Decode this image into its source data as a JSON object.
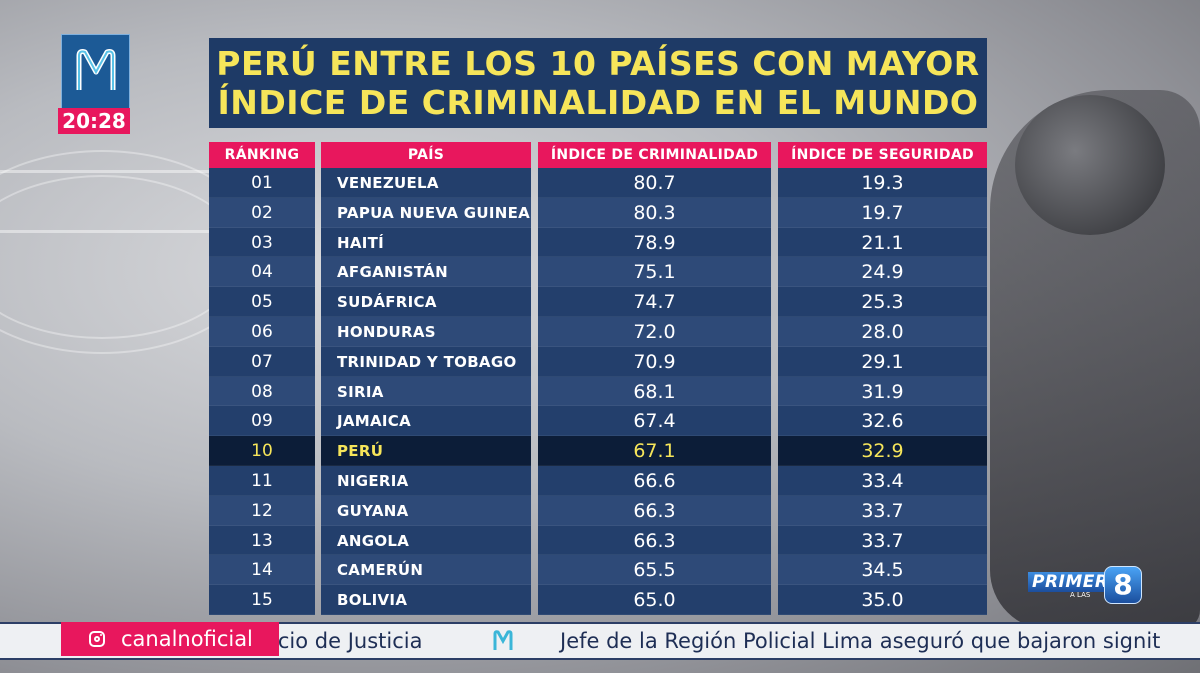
{
  "broadcast": {
    "clock": "20:28",
    "logo_icon": "canal-n-logo-icon"
  },
  "title": {
    "line1": "PERÚ ENTRE LOS 10 PAÍSES CON MAYOR",
    "line2": "ÍNDICE DE CRIMINALIDAD EN EL MUNDO"
  },
  "table": {
    "headers": {
      "rank": "RÁNKING",
      "country": "PAÍS",
      "crime": "ÍNDICE DE CRIMINALIDAD",
      "safety": "ÍNDICE DE SEGURIDAD"
    },
    "rows": [
      {
        "rank": "01",
        "country": "VENEZUELA",
        "crime": "80.7",
        "safety": "19.3"
      },
      {
        "rank": "02",
        "country": "PAPUA NUEVA GUINEA",
        "crime": "80.3",
        "safety": "19.7"
      },
      {
        "rank": "03",
        "country": "HAITÍ",
        "crime": "78.9",
        "safety": "21.1"
      },
      {
        "rank": "04",
        "country": "AFGANISTÁN",
        "crime": "75.1",
        "safety": "24.9"
      },
      {
        "rank": "05",
        "country": "SUDÁFRICA",
        "crime": "74.7",
        "safety": "25.3"
      },
      {
        "rank": "06",
        "country": "HONDURAS",
        "crime": "72.0",
        "safety": "28.0"
      },
      {
        "rank": "07",
        "country": "TRINIDAD Y TOBAGO",
        "crime": "70.9",
        "safety": "29.1"
      },
      {
        "rank": "08",
        "country": "SIRIA",
        "crime": "68.1",
        "safety": "31.9"
      },
      {
        "rank": "09",
        "country": "JAMAICA",
        "crime": "67.4",
        "safety": "32.6"
      },
      {
        "rank": "10",
        "country": "PERÚ",
        "crime": "67.1",
        "safety": "32.9",
        "highlight": true
      },
      {
        "rank": "11",
        "country": "NIGERIA",
        "crime": "66.6",
        "safety": "33.4"
      },
      {
        "rank": "12",
        "country": "GUYANA",
        "crime": "66.3",
        "safety": "33.7"
      },
      {
        "rank": "13",
        "country": "ANGOLA",
        "crime": "66.3",
        "safety": "33.7"
      },
      {
        "rank": "14",
        "country": "CAMERÚN",
        "crime": "65.5",
        "safety": "34.5"
      },
      {
        "rank": "15",
        "country": "BOLIVIA",
        "crime": "65.0",
        "safety": "35.0"
      }
    ]
  },
  "ticker": {
    "handle": "canalnoficial",
    "text_left": "acio de Justicia",
    "text_right": "Jefe de la Región Policial Lima aseguró que bajaron signit"
  },
  "program": {
    "word": "PRIMERO",
    "sub": "A LAS",
    "number": "8"
  },
  "colors": {
    "accent": "#e8175d",
    "navy": "#1e3a66",
    "highlight_text": "#f6e55a"
  }
}
